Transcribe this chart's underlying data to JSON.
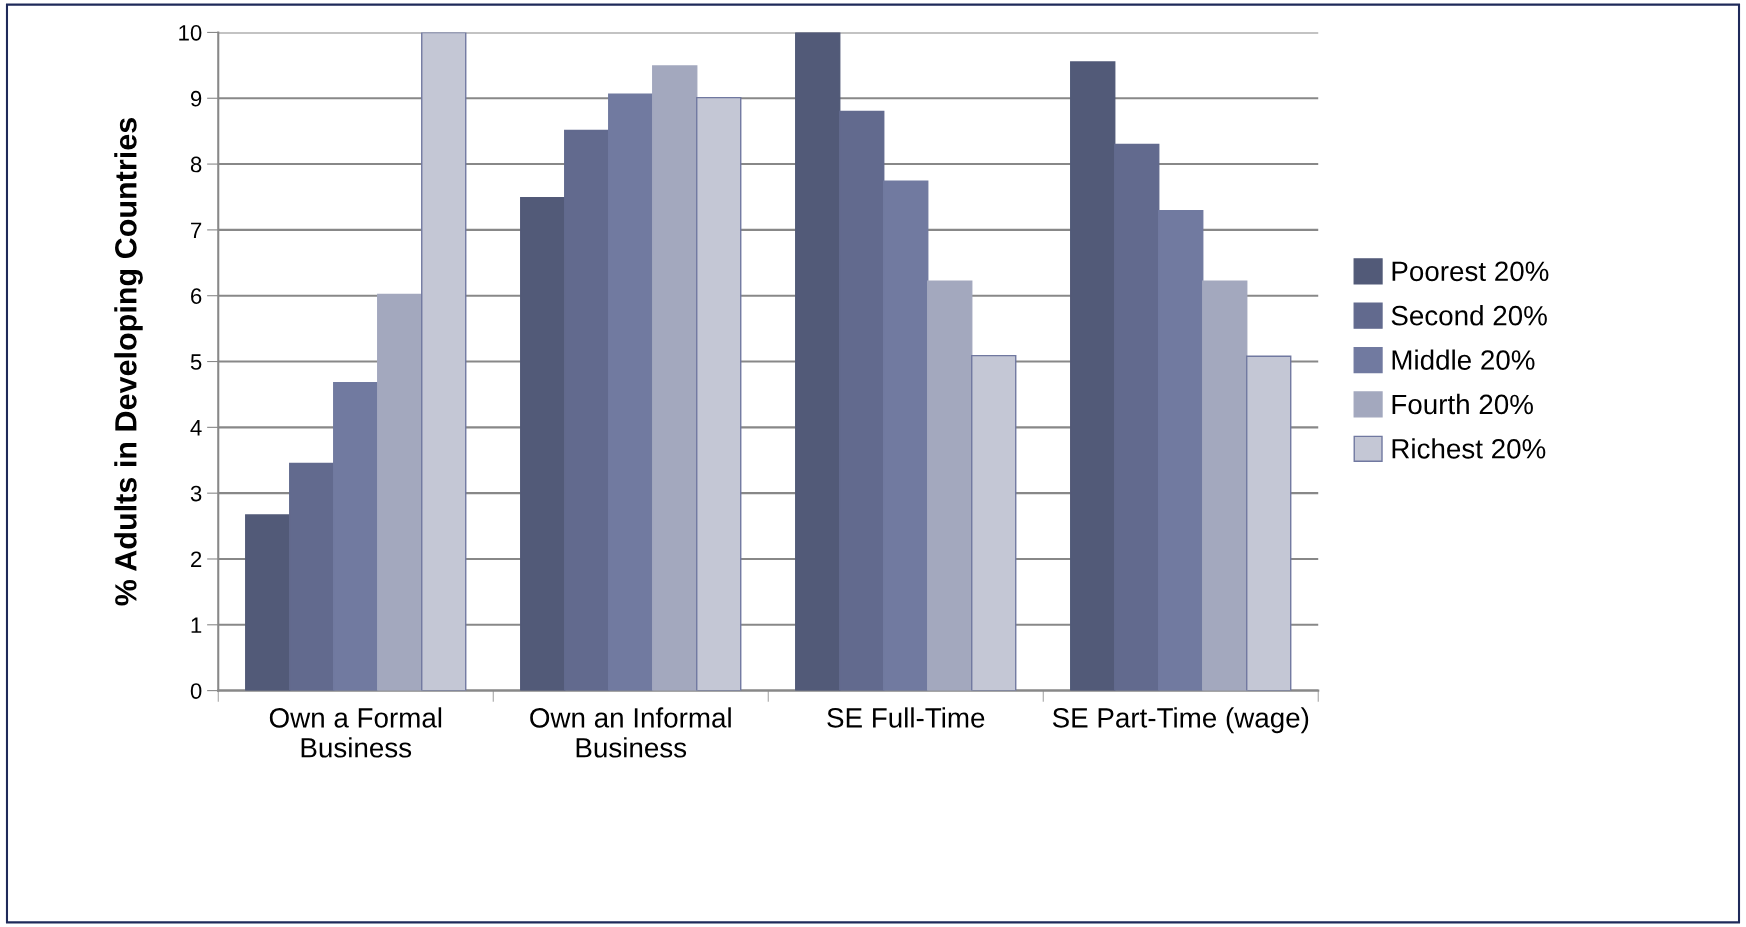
{
  "chart_data": {
    "type": "bar",
    "ylabel": "% Adults in Developing Countries",
    "categories": [
      "Own a Formal\nBusiness",
      "Own an Informal\nBusiness",
      "SE Full-Time",
      "SE Part-Time (wage)"
    ],
    "series": [
      {
        "name": "Poorest 20%",
        "color": "#525a78",
        "values": [
          2.67,
          7.49,
          10,
          9.55
        ]
      },
      {
        "name": "Second 20%",
        "color": "#626a8e",
        "values": [
          3.45,
          8.51,
          8.8,
          8.3
        ]
      },
      {
        "name": "Middle 20%",
        "color": "#717aa0",
        "values": [
          4.68,
          9.06,
          7.74,
          7.29
        ]
      },
      {
        "name": "Fourth 20%",
        "color": "#a3a8be",
        "values": [
          6.02,
          9.49,
          6.22,
          6.22
        ]
      },
      {
        "name": "Richest 20%",
        "color": "#c4c7d5",
        "values": [
          10,
          9.01,
          5.09,
          5.08
        ]
      }
    ],
    "ylim": [
      0,
      10
    ],
    "yticks": [
      0,
      1,
      2,
      3,
      4,
      5,
      6,
      7,
      8,
      9,
      10
    ],
    "grid": "y",
    "legend": "right"
  }
}
